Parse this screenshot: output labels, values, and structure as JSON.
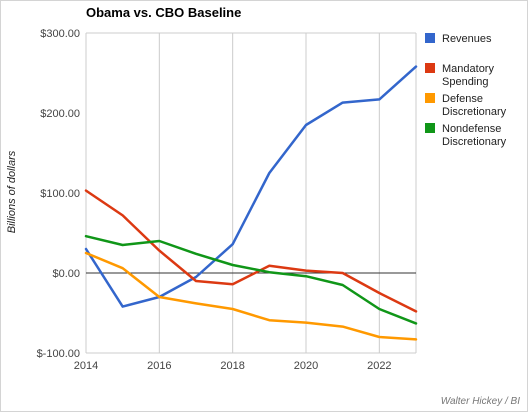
{
  "chart_data": {
    "type": "line",
    "title": "Obama vs. CBO Baseline",
    "ylabel": "Billions of dollars",
    "xlabel": "",
    "x": [
      2014,
      2015,
      2016,
      2017,
      2018,
      2019,
      2020,
      2021,
      2022,
      2023
    ],
    "xlim": [
      2014,
      2023
    ],
    "ylim": [
      -100,
      300
    ],
    "y_ticks": [
      300,
      200,
      100,
      0,
      -100
    ],
    "y_tick_labels": [
      "$300.00",
      "$200.00",
      "$100.00",
      "$0.00",
      "$-100.00"
    ],
    "x_ticks": [
      2014,
      2016,
      2018,
      2020,
      2022
    ],
    "x_tick_labels": [
      "2014",
      "2016",
      "2018",
      "2020",
      "2022"
    ],
    "grid": "vertical",
    "zero_line": true,
    "legend_position": "right",
    "series": [
      {
        "name": "Revenues",
        "color": "#3366cc",
        "values": [
          30,
          -42,
          -30,
          -5,
          36,
          125,
          185,
          213,
          217,
          258
        ]
      },
      {
        "name": "Mandatory Spending",
        "color": "#dc3912",
        "values": [
          103,
          72,
          28,
          -10,
          -14,
          9,
          3,
          0,
          -25,
          -48
        ]
      },
      {
        "name": "Defense Discretionary",
        "color": "#ff9900",
        "values": [
          25,
          6,
          -30,
          -38,
          -45,
          -59,
          -62,
          -67,
          -80,
          -83
        ]
      },
      {
        "name": "Nondefense Discretionary",
        "color": "#109618",
        "values": [
          46,
          35,
          40,
          24,
          10,
          1,
          -4,
          -15,
          -45,
          -63
        ]
      }
    ],
    "legend_lines": [
      [
        "Revenues"
      ],
      [
        "Mandatory",
        "Spending"
      ],
      [
        "Defense",
        "Discretionary"
      ],
      [
        "Nondefense",
        "Discretionary"
      ]
    ],
    "credit": "Walter Hickey / BI"
  }
}
